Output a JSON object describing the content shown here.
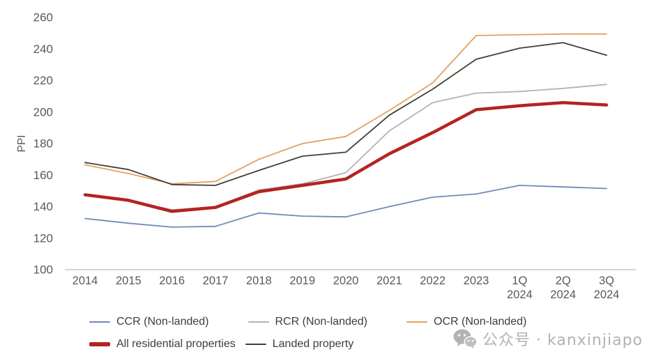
{
  "watermark": {
    "text": "公众号 · kanxinjiapo",
    "icon": "wechat-icon"
  },
  "chart_data": {
    "type": "line",
    "title": "",
    "xlabel": "",
    "ylabel": "PPI",
    "ylim": [
      100,
      260
    ],
    "yticks": [
      100,
      120,
      140,
      160,
      180,
      200,
      220,
      240,
      260
    ],
    "grid": false,
    "legend_position": "bottom",
    "categories": [
      "2014",
      "2015",
      "2016",
      "2017",
      "2018",
      "2019",
      "2020",
      "2021",
      "2022",
      "2023",
      "1Q 2024",
      "2Q 2024",
      "3Q 2024"
    ],
    "series": [
      {
        "name": "CCR (Non-landed)",
        "color": "#6f8ab8",
        "line_width": 1.8,
        "values": [
          132.5,
          129.5,
          127,
          127.5,
          136,
          134,
          133.5,
          140,
          146,
          148,
          153.5,
          152.5,
          151.5
        ]
      },
      {
        "name": "RCR (Non-landed)",
        "color": "#b3b2b7",
        "line_width": 1.8,
        "values": [
          148,
          144,
          138,
          140,
          150.5,
          154.5,
          161.5,
          188,
          206,
          212,
          213,
          215,
          217.5
        ]
      },
      {
        "name": "OCR (Non-landed)",
        "color": "#e2a05d",
        "line_width": 1.8,
        "values": [
          166.5,
          161,
          154.5,
          156,
          170,
          180,
          184.5,
          201,
          218.5,
          248.5,
          249,
          249.5,
          249.5
        ]
      },
      {
        "name": "All residential properties",
        "color": "#b42321",
        "line_width": 4.5,
        "values": [
          147.5,
          144,
          137,
          139.5,
          149.5,
          153.5,
          157.5,
          173.5,
          187,
          201.5,
          204,
          206,
          204.5
        ]
      },
      {
        "name": "Landed property",
        "color": "#3f3f3a",
        "line_width": 1.8,
        "values": [
          168,
          163.5,
          154,
          153.5,
          163,
          172,
          174.5,
          198,
          214.5,
          233.5,
          240.5,
          244,
          236
        ]
      }
    ],
    "axis_color": "#c9c9c9",
    "tick_label_color": "#595959"
  },
  "legend": {
    "row1_series": [
      0,
      1,
      2
    ],
    "row2_series": [
      3,
      4
    ]
  }
}
